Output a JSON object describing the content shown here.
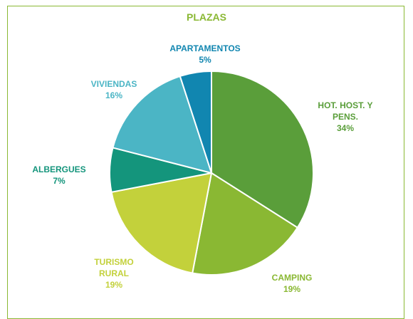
{
  "chart_data": {
    "type": "pie",
    "title": "PLAZAS",
    "categories": [
      "HOT. HOST. Y PENS.",
      "CAMPING",
      "TURISMO RURAL",
      "ALBERGUES",
      "VIVIENDAS",
      "APARTAMENTOS"
    ],
    "values": [
      34,
      19,
      19,
      7,
      16,
      5
    ],
    "value_labels": [
      "34%",
      "19%",
      "19%",
      "7%",
      "16%",
      "5%"
    ],
    "colors": [
      "#5a9e3a",
      "#8ab833",
      "#c3d13b",
      "#14957c",
      "#4bb5c5",
      "#1186b0"
    ]
  }
}
